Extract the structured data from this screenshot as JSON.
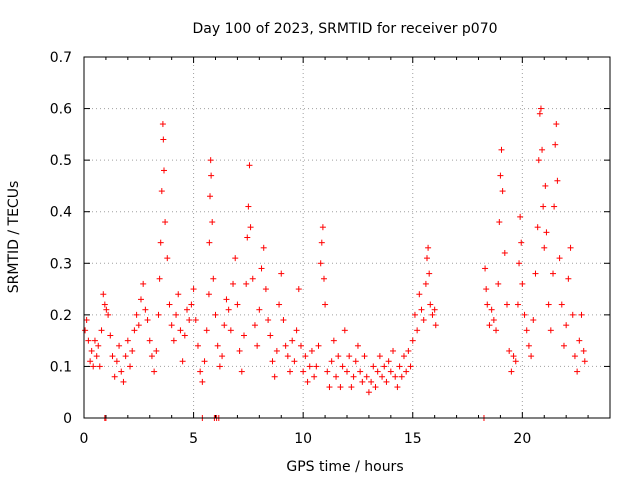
{
  "chart_data": {
    "type": "scatter",
    "title": "Day 100 of 2023, SRMTID for receiver p070",
    "xlabel": "GPS time / hours",
    "ylabel": "SRMTID / TECUs",
    "xlim": [
      0,
      24
    ],
    "ylim": [
      0,
      0.7
    ],
    "x_ticks": [
      0,
      5,
      10,
      15,
      20
    ],
    "y_ticks": [
      0,
      0.1,
      0.2,
      0.3,
      0.4,
      0.5,
      0.6,
      0.7
    ],
    "x_tick_labels": [
      "0",
      "5",
      "10",
      "15",
      "20"
    ],
    "y_tick_labels": [
      "0",
      "0.1",
      "0.2",
      "0.3",
      "0.4",
      "0.5",
      "0.6",
      "0.7"
    ],
    "grid": true,
    "marker": "+",
    "series": [
      {
        "name": "SRMTID",
        "color": "#ff0000",
        "points": [
          [
            0.05,
            0.17
          ],
          [
            0.12,
            0.19
          ],
          [
            0.2,
            0.15
          ],
          [
            0.28,
            0.11
          ],
          [
            0.35,
            0.13
          ],
          [
            0.42,
            0.1
          ],
          [
            0.5,
            0.15
          ],
          [
            0.58,
            0.12
          ],
          [
            0.65,
            0.14
          ],
          [
            0.72,
            0.1
          ],
          [
            0.8,
            0.17
          ],
          [
            0.88,
            0.24
          ],
          [
            0.95,
            0.22
          ],
          [
            1.02,
            0.21
          ],
          [
            1.1,
            0.2
          ],
          [
            1.2,
            0.16
          ],
          [
            1.3,
            0.12
          ],
          [
            1.4,
            0.08
          ],
          [
            1.5,
            0.11
          ],
          [
            1.6,
            0.14
          ],
          [
            1.7,
            0.09
          ],
          [
            1.8,
            0.07
          ],
          [
            1.9,
            0.12
          ],
          [
            2.0,
            0.15
          ],
          [
            2.1,
            0.1
          ],
          [
            2.2,
            0.13
          ],
          [
            2.3,
            0.17
          ],
          [
            2.4,
            0.2
          ],
          [
            2.5,
            0.18
          ],
          [
            2.6,
            0.23
          ],
          [
            2.7,
            0.26
          ],
          [
            2.8,
            0.21
          ],
          [
            2.9,
            0.19
          ],
          [
            3.0,
            0.15
          ],
          [
            3.1,
            0.12
          ],
          [
            3.2,
            0.09
          ],
          [
            3.3,
            0.13
          ],
          [
            3.4,
            0.2
          ],
          [
            3.45,
            0.27
          ],
          [
            3.5,
            0.34
          ],
          [
            3.55,
            0.44
          ],
          [
            3.6,
            0.57
          ],
          [
            3.62,
            0.54
          ],
          [
            3.65,
            0.48
          ],
          [
            3.7,
            0.38
          ],
          [
            3.8,
            0.31
          ],
          [
            3.9,
            0.22
          ],
          [
            4.0,
            0.18
          ],
          [
            4.1,
            0.15
          ],
          [
            4.2,
            0.2
          ],
          [
            4.3,
            0.24
          ],
          [
            4.4,
            0.17
          ],
          [
            4.5,
            0.11
          ],
          [
            4.6,
            0.16
          ],
          [
            4.7,
            0.21
          ],
          [
            4.8,
            0.19
          ],
          [
            4.9,
            0.22
          ],
          [
            5.0,
            0.25
          ],
          [
            5.1,
            0.19
          ],
          [
            5.2,
            0.14
          ],
          [
            5.3,
            0.09
          ],
          [
            5.4,
            0.07
          ],
          [
            5.5,
            0.11
          ],
          [
            5.6,
            0.17
          ],
          [
            5.7,
            0.24
          ],
          [
            5.72,
            0.34
          ],
          [
            5.75,
            0.43
          ],
          [
            5.78,
            0.5
          ],
          [
            5.8,
            0.47
          ],
          [
            5.85,
            0.38
          ],
          [
            5.9,
            0.27
          ],
          [
            6.0,
            0.2
          ],
          [
            6.1,
            0.14
          ],
          [
            6.2,
            0.1
          ],
          [
            6.3,
            0.12
          ],
          [
            6.4,
            0.18
          ],
          [
            6.5,
            0.23
          ],
          [
            6.6,
            0.21
          ],
          [
            6.7,
            0.17
          ],
          [
            6.8,
            0.26
          ],
          [
            6.9,
            0.31
          ],
          [
            7.0,
            0.22
          ],
          [
            7.1,
            0.13
          ],
          [
            7.2,
            0.09
          ],
          [
            7.3,
            0.16
          ],
          [
            7.4,
            0.26
          ],
          [
            7.45,
            0.35
          ],
          [
            7.5,
            0.41
          ],
          [
            7.55,
            0.49
          ],
          [
            7.6,
            0.37
          ],
          [
            7.7,
            0.27
          ],
          [
            7.8,
            0.18
          ],
          [
            7.9,
            0.14
          ],
          [
            8.0,
            0.21
          ],
          [
            8.1,
            0.29
          ],
          [
            8.2,
            0.33
          ],
          [
            8.3,
            0.25
          ],
          [
            8.4,
            0.19
          ],
          [
            8.5,
            0.16
          ],
          [
            8.6,
            0.11
          ],
          [
            8.7,
            0.08
          ],
          [
            8.8,
            0.13
          ],
          [
            8.9,
            0.22
          ],
          [
            9.0,
            0.28
          ],
          [
            9.1,
            0.19
          ],
          [
            9.2,
            0.14
          ],
          [
            9.3,
            0.12
          ],
          [
            9.4,
            0.09
          ],
          [
            9.5,
            0.15
          ],
          [
            9.6,
            0.11
          ],
          [
            9.7,
            0.17
          ],
          [
            9.8,
            0.25
          ],
          [
            9.9,
            0.14
          ],
          [
            10.0,
            0.09
          ],
          [
            10.1,
            0.12
          ],
          [
            10.2,
            0.07
          ],
          [
            10.3,
            0.1
          ],
          [
            10.4,
            0.13
          ],
          [
            10.5,
            0.08
          ],
          [
            10.6,
            0.1
          ],
          [
            10.7,
            0.14
          ],
          [
            10.8,
            0.3
          ],
          [
            10.85,
            0.34
          ],
          [
            10.9,
            0.37
          ],
          [
            10.95,
            0.27
          ],
          [
            11.0,
            0.22
          ],
          [
            11.1,
            0.09
          ],
          [
            11.2,
            0.06
          ],
          [
            11.3,
            0.11
          ],
          [
            11.4,
            0.15
          ],
          [
            11.5,
            0.08
          ],
          [
            11.6,
            0.12
          ],
          [
            11.7,
            0.06
          ],
          [
            11.8,
            0.1
          ],
          [
            11.9,
            0.17
          ],
          [
            12.0,
            0.09
          ],
          [
            12.1,
            0.12
          ],
          [
            12.2,
            0.06
          ],
          [
            12.3,
            0.08
          ],
          [
            12.4,
            0.11
          ],
          [
            12.5,
            0.14
          ],
          [
            12.6,
            0.09
          ],
          [
            12.7,
            0.07
          ],
          [
            12.8,
            0.12
          ],
          [
            12.9,
            0.08
          ],
          [
            13.0,
            0.05
          ],
          [
            13.1,
            0.07
          ],
          [
            13.2,
            0.1
          ],
          [
            13.3,
            0.06
          ],
          [
            13.4,
            0.09
          ],
          [
            13.5,
            0.12
          ],
          [
            13.6,
            0.08
          ],
          [
            13.7,
            0.1
          ],
          [
            13.8,
            0.07
          ],
          [
            13.9,
            0.11
          ],
          [
            14.0,
            0.09
          ],
          [
            14.1,
            0.13
          ],
          [
            14.2,
            0.08
          ],
          [
            14.3,
            0.06
          ],
          [
            14.4,
            0.1
          ],
          [
            14.5,
            0.08
          ],
          [
            14.6,
            0.12
          ],
          [
            14.7,
            0.09
          ],
          [
            14.8,
            0.13
          ],
          [
            14.9,
            0.1
          ],
          [
            15.0,
            0.15
          ],
          [
            15.1,
            0.2
          ],
          [
            15.2,
            0.17
          ],
          [
            15.3,
            0.24
          ],
          [
            15.4,
            0.21
          ],
          [
            15.5,
            0.19
          ],
          [
            15.6,
            0.26
          ],
          [
            15.65,
            0.31
          ],
          [
            15.7,
            0.33
          ],
          [
            15.75,
            0.28
          ],
          [
            15.8,
            0.22
          ],
          [
            15.9,
            0.2
          ],
          [
            16.0,
            0.21
          ],
          [
            16.05,
            0.18
          ],
          [
            18.3,
            0.29
          ],
          [
            18.35,
            0.25
          ],
          [
            18.4,
            0.22
          ],
          [
            18.5,
            0.18
          ],
          [
            18.6,
            0.21
          ],
          [
            18.7,
            0.19
          ],
          [
            18.8,
            0.17
          ],
          [
            18.9,
            0.26
          ],
          [
            18.95,
            0.38
          ],
          [
            19.0,
            0.47
          ],
          [
            19.05,
            0.52
          ],
          [
            19.1,
            0.44
          ],
          [
            19.2,
            0.32
          ],
          [
            19.3,
            0.22
          ],
          [
            19.4,
            0.13
          ],
          [
            19.5,
            0.09
          ],
          [
            19.6,
            0.12
          ],
          [
            19.7,
            0.11
          ],
          [
            19.8,
            0.22
          ],
          [
            19.85,
            0.3
          ],
          [
            19.9,
            0.39
          ],
          [
            19.95,
            0.34
          ],
          [
            20.0,
            0.26
          ],
          [
            20.1,
            0.2
          ],
          [
            20.2,
            0.17
          ],
          [
            20.3,
            0.14
          ],
          [
            20.4,
            0.12
          ],
          [
            20.5,
            0.19
          ],
          [
            20.6,
            0.28
          ],
          [
            20.7,
            0.37
          ],
          [
            20.75,
            0.5
          ],
          [
            20.8,
            0.59
          ],
          [
            20.85,
            0.6
          ],
          [
            20.9,
            0.52
          ],
          [
            20.95,
            0.41
          ],
          [
            21.0,
            0.33
          ],
          [
            21.05,
            0.45
          ],
          [
            21.1,
            0.36
          ],
          [
            21.2,
            0.22
          ],
          [
            21.3,
            0.17
          ],
          [
            21.4,
            0.28
          ],
          [
            21.45,
            0.41
          ],
          [
            21.5,
            0.53
          ],
          [
            21.55,
            0.57
          ],
          [
            21.6,
            0.46
          ],
          [
            21.7,
            0.31
          ],
          [
            21.8,
            0.22
          ],
          [
            21.9,
            0.14
          ],
          [
            22.0,
            0.18
          ],
          [
            22.1,
            0.27
          ],
          [
            22.2,
            0.33
          ],
          [
            22.3,
            0.2
          ],
          [
            22.4,
            0.12
          ],
          [
            22.5,
            0.09
          ],
          [
            22.6,
            0.15
          ],
          [
            22.7,
            0.2
          ],
          [
            22.8,
            0.13
          ],
          [
            22.85,
            0.11
          ]
        ]
      }
    ],
    "zero_points_x": [
      0.95,
      1.0,
      5.4,
      5.95,
      6.05,
      6.15,
      18.25
    ]
  }
}
